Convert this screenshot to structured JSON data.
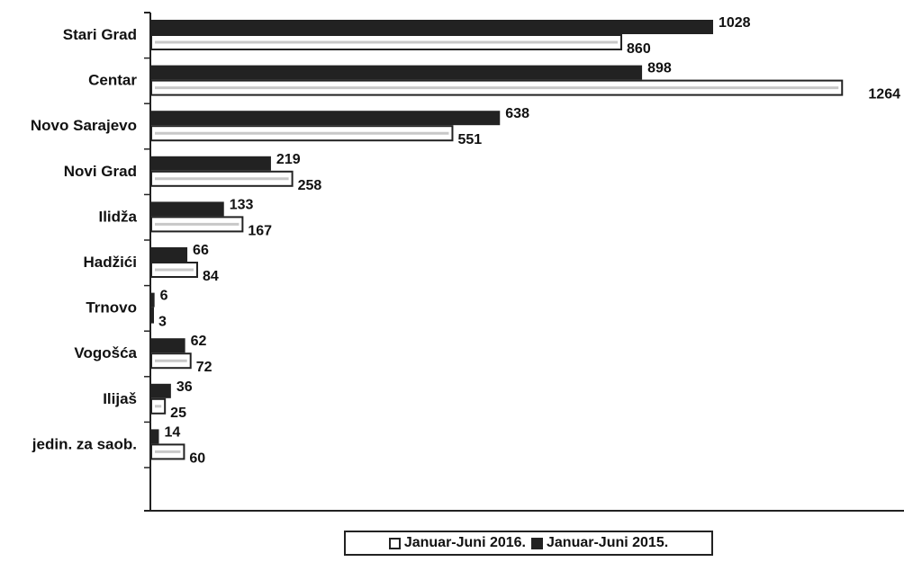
{
  "chart_data": {
    "type": "bar",
    "orientation": "horizontal",
    "title": "",
    "xlabel": "",
    "ylabel": "",
    "categories": [
      "Stari Grad",
      "Centar",
      "Novo Sarajevo",
      "Novi Grad",
      "Ilidža",
      "Hadžići",
      "Trnovo",
      "Vogošća",
      "Ilijaš",
      "jedin. za saob."
    ],
    "series": [
      {
        "name": "Januar-Juni 2015.",
        "color": "#222222",
        "values": [
          1028,
          898,
          638,
          219,
          133,
          66,
          6,
          62,
          36,
          14
        ]
      },
      {
        "name": "Januar-Juni 2016.",
        "color": "#ffffff",
        "values": [
          860,
          1264,
          551,
          258,
          167,
          84,
          3,
          72,
          25,
          60
        ]
      }
    ],
    "xlim": [
      0,
      1380
    ],
    "grid": false,
    "legend": {
      "placement": "bottom-center"
    }
  }
}
